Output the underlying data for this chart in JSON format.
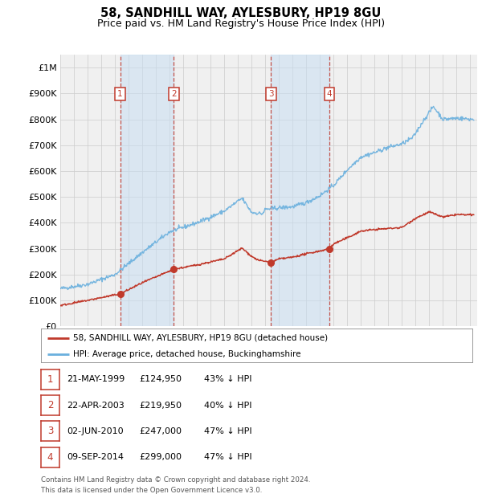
{
  "title": "58, SANDHILL WAY, AYLESBURY, HP19 8GU",
  "subtitle": "Price paid vs. HM Land Registry's House Price Index (HPI)",
  "title_fontsize": 10.5,
  "subtitle_fontsize": 9,
  "hpi_color": "#6ab0de",
  "price_color": "#c0392b",
  "bg_color": "#ffffff",
  "chart_bg": "#f0f0f0",
  "grid_color": "#cccccc",
  "shade_color": "#c8dff2",
  "yticks": [
    0,
    100000,
    200000,
    300000,
    400000,
    500000,
    600000,
    700000,
    800000,
    900000,
    1000000
  ],
  "ytick_labels": [
    "£0",
    "£100K",
    "£200K",
    "£300K",
    "£400K",
    "£500K",
    "£600K",
    "£700K",
    "£800K",
    "£900K",
    "£1M"
  ],
  "ylim": [
    0,
    1050000
  ],
  "xmin": 1995.0,
  "xmax": 2025.5,
  "transactions": [
    {
      "num": 1,
      "date": "21-MAY-1999",
      "price": 124950,
      "pct": "43%",
      "year": 1999.38
    },
    {
      "num": 2,
      "date": "22-APR-2003",
      "price": 219950,
      "pct": "40%",
      "year": 2003.31
    },
    {
      "num": 3,
      "date": "02-JUN-2010",
      "price": 247000,
      "pct": "47%",
      "year": 2010.42
    },
    {
      "num": 4,
      "date": "09-SEP-2014",
      "price": 299000,
      "pct": "47%",
      "year": 2014.69
    }
  ],
  "legend_label1": "58, SANDHILL WAY, AYLESBURY, HP19 8GU (detached house)",
  "legend_label2": "HPI: Average price, detached house, Buckinghamshire",
  "footer1": "Contains HM Land Registry data © Crown copyright and database right 2024.",
  "footer2": "This data is licensed under the Open Government Licence v3.0."
}
